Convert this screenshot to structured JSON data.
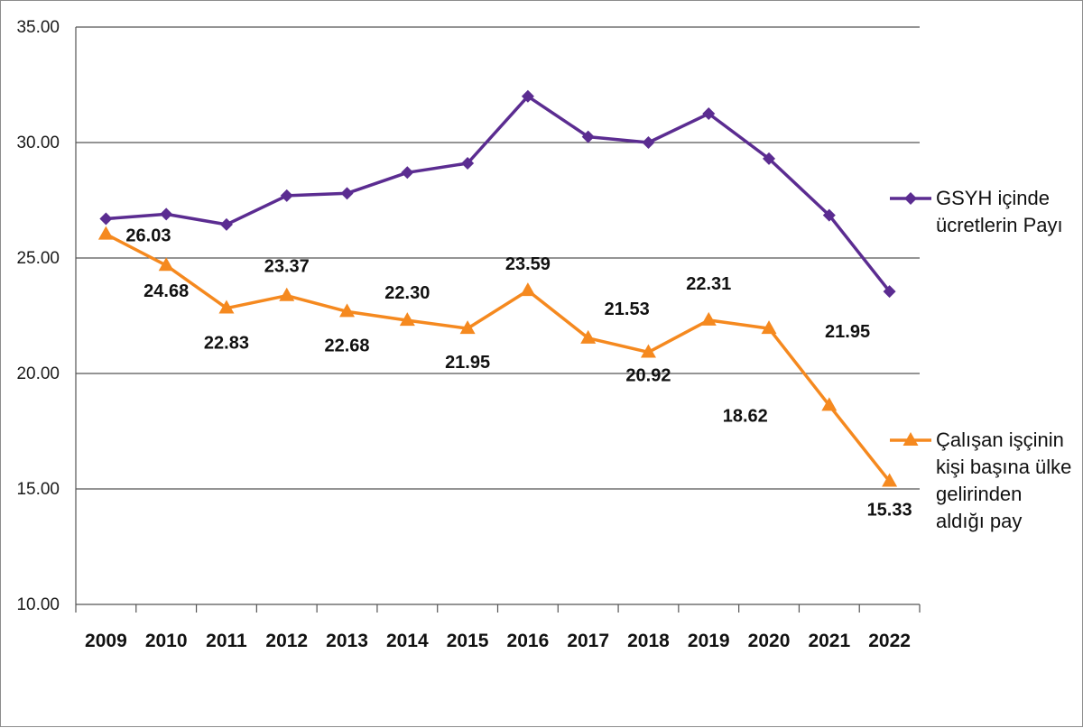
{
  "chart_data": {
    "type": "line",
    "title": "",
    "xlabel": "",
    "ylabel": "",
    "ylim": [
      10,
      35
    ],
    "y_ticks": [
      "10.00",
      "15.00",
      "20.00",
      "25.00",
      "30.00",
      "35.00"
    ],
    "grid": true,
    "legend_position": "right",
    "categories": [
      "2009",
      "2010",
      "2011",
      "2012",
      "2013",
      "2014",
      "2015",
      "2016",
      "2017",
      "2018",
      "2019",
      "2020",
      "2021",
      "2022"
    ],
    "series": [
      {
        "name_lines": [
          "GSYH içinde",
          "ücretlerin Payı"
        ],
        "color": "#5b2c91",
        "marker": "diamond",
        "values": [
          26.7,
          26.9,
          26.45,
          27.7,
          27.8,
          28.7,
          29.1,
          32.0,
          30.25,
          30.0,
          31.25,
          29.3,
          26.85,
          23.55
        ],
        "show_labels": false
      },
      {
        "name_lines": [
          "Çalışan işçinin",
          "kişi başına ülke",
          "gelirinden",
          "aldığı pay"
        ],
        "color": "#f5891f",
        "marker": "triangle",
        "values": [
          26.03,
          24.68,
          22.83,
          23.37,
          22.68,
          22.3,
          21.95,
          23.59,
          21.53,
          20.92,
          22.31,
          21.95,
          18.62,
          15.33
        ],
        "labels": [
          "26.03",
          "24.68",
          "22.83",
          "23.37",
          "22.68",
          "22.30",
          "21.95",
          "23.59",
          "21.53",
          "20.92",
          "22.31",
          "21.95",
          "18.62",
          "15.33"
        ],
        "show_labels": true
      }
    ]
  }
}
